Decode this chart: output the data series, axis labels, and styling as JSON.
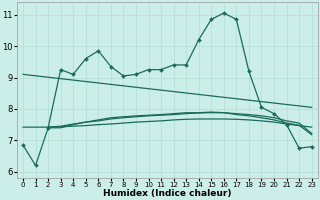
{
  "xlabel": "Humidex (Indice chaleur)",
  "xlim_min": -0.5,
  "xlim_max": 23.5,
  "ylim_min": 5.8,
  "ylim_max": 11.4,
  "yticks": [
    6,
    7,
    8,
    9,
    10,
    11
  ],
  "xticks": [
    0,
    1,
    2,
    3,
    4,
    5,
    6,
    7,
    8,
    9,
    10,
    11,
    12,
    13,
    14,
    15,
    16,
    17,
    18,
    19,
    20,
    21,
    22,
    23
  ],
  "bg_color": "#cbeee8",
  "line_color": "#1a6b5e",
  "grid_color": "#b0ddd5",
  "line1_x": [
    0,
    1,
    2,
    3,
    4,
    5,
    6,
    7,
    8,
    9,
    10,
    11,
    12,
    13,
    14,
    15,
    16,
    17,
    18,
    19,
    20,
    21,
    22,
    23
  ],
  "line1_y": [
    6.85,
    6.2,
    7.4,
    9.25,
    9.1,
    9.6,
    9.85,
    9.35,
    9.05,
    9.1,
    9.25,
    9.25,
    9.4,
    9.4,
    10.2,
    10.85,
    11.05,
    10.85,
    9.2,
    8.05,
    7.85,
    7.5,
    6.75,
    6.8
  ],
  "line2_x": [
    0,
    23
  ],
  "line2_y": [
    9.1,
    8.05
  ],
  "line3_x": [
    2,
    3,
    4,
    5,
    6,
    7,
    8,
    9,
    10,
    11,
    12,
    13,
    14,
    15,
    16,
    17,
    18,
    19,
    20,
    21,
    22,
    23
  ],
  "line3_y": [
    7.4,
    7.4,
    7.5,
    7.58,
    7.65,
    7.72,
    7.75,
    7.78,
    7.8,
    7.82,
    7.85,
    7.88,
    7.88,
    7.9,
    7.88,
    7.82,
    7.78,
    7.72,
    7.65,
    7.55,
    7.48,
    7.18
  ],
  "line4_x": [
    2,
    3,
    4,
    5,
    6,
    7,
    8,
    9,
    10,
    11,
    12,
    13,
    14,
    15,
    16,
    17,
    18,
    19,
    20,
    21,
    22,
    23
  ],
  "line4_y": [
    7.42,
    7.45,
    7.52,
    7.58,
    7.62,
    7.68,
    7.72,
    7.75,
    7.78,
    7.8,
    7.82,
    7.85,
    7.87,
    7.88,
    7.88,
    7.85,
    7.82,
    7.78,
    7.72,
    7.62,
    7.55,
    7.22
  ],
  "line5_x": [
    0,
    1,
    2,
    3,
    4,
    5,
    6,
    7,
    8,
    9,
    10,
    11,
    12,
    13,
    14,
    15,
    16,
    17,
    18,
    19,
    20,
    21,
    22,
    23
  ],
  "line5_y": [
    7.42,
    7.42,
    7.42,
    7.43,
    7.45,
    7.47,
    7.5,
    7.52,
    7.55,
    7.58,
    7.6,
    7.62,
    7.65,
    7.67,
    7.68,
    7.68,
    7.68,
    7.67,
    7.65,
    7.62,
    7.58,
    7.52,
    7.47,
    7.42
  ]
}
